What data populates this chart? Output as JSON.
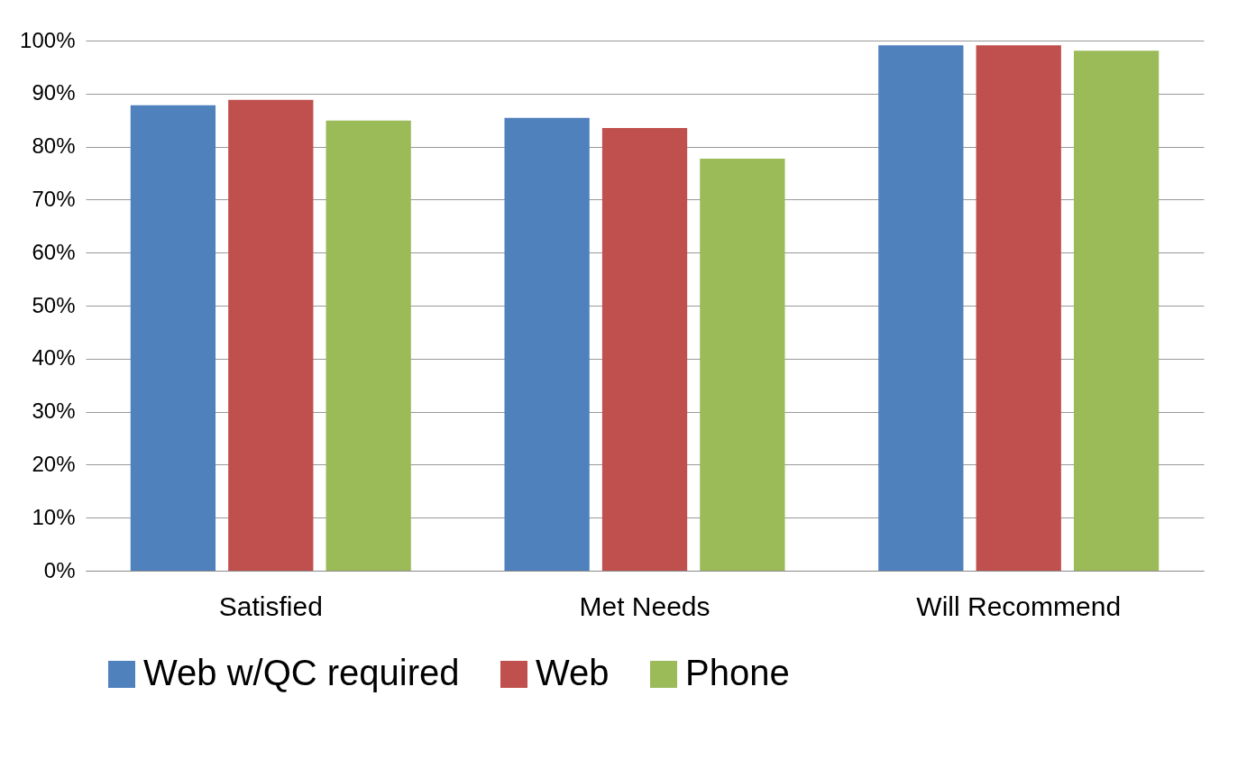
{
  "chart_data": {
    "type": "bar",
    "categories": [
      "Satisfied",
      "Met Needs",
      "Will Recommend"
    ],
    "series": [
      {
        "name": "Web w/QC required",
        "color": "#4f81bd",
        "values": [
          87.8,
          85.4,
          99.1
        ]
      },
      {
        "name": "Web",
        "color": "#c0504d",
        "values": [
          88.8,
          83.5,
          99.1
        ]
      },
      {
        "name": "Phone",
        "color": "#9bbb59",
        "values": [
          84.9,
          77.7,
          98.1
        ]
      }
    ],
    "ylim": [
      0,
      100
    ],
    "yticks": [
      {
        "value": 0,
        "label": "0%"
      },
      {
        "value": 10,
        "label": "10%"
      },
      {
        "value": 20,
        "label": "20%"
      },
      {
        "value": 30,
        "label": "30%"
      },
      {
        "value": 40,
        "label": "40%"
      },
      {
        "value": 50,
        "label": "50%"
      },
      {
        "value": 60,
        "label": "60%"
      },
      {
        "value": 70,
        "label": "70%"
      },
      {
        "value": 80,
        "label": "80%"
      },
      {
        "value": 90,
        "label": "90%"
      },
      {
        "value": 100,
        "label": "100%"
      }
    ],
    "grid": "y",
    "legend": "bottom"
  }
}
